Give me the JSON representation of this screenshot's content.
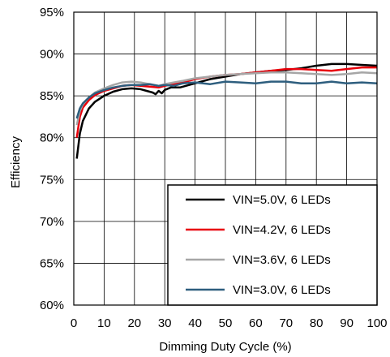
{
  "chart_data": {
    "type": "line",
    "title": "",
    "xlabel": "Dimming Duty Cycle (%)",
    "ylabel": "Efficiency",
    "xlim": [
      0,
      100
    ],
    "ylim": [
      60,
      95
    ],
    "xticks": [
      0,
      10,
      20,
      30,
      40,
      50,
      60,
      70,
      80,
      90,
      100
    ],
    "yticks": [
      60,
      65,
      70,
      75,
      80,
      85,
      90,
      95
    ],
    "ytick_labels": [
      "60%",
      "65%",
      "70%",
      "75%",
      "80%",
      "85%",
      "90%",
      "95%"
    ],
    "xtick_labels": [
      "0",
      "10",
      "20",
      "30",
      "40",
      "50",
      "60",
      "70",
      "80",
      "90",
      "100"
    ],
    "grid": true,
    "legend_position": "bottom-right",
    "series": [
      {
        "name": "VIN=5.0V, 6 LEDs",
        "color": "#000000",
        "x": [
          1,
          2,
          3,
          5,
          7,
          10,
          13,
          16,
          19,
          22,
          24,
          26,
          27,
          28,
          29,
          30,
          32,
          35,
          40,
          45,
          50,
          55,
          60,
          65,
          70,
          75,
          80,
          85,
          90,
          95,
          100
        ],
        "y": [
          77.5,
          80.5,
          82.0,
          83.5,
          84.3,
          85.0,
          85.5,
          85.8,
          85.9,
          85.8,
          85.6,
          85.4,
          85.2,
          85.6,
          85.3,
          85.7,
          86.0,
          86.0,
          86.5,
          87.0,
          87.3,
          87.6,
          87.8,
          88.0,
          88.1,
          88.3,
          88.6,
          88.8,
          88.8,
          88.7,
          88.6
        ]
      },
      {
        "name": "VIN=4.2V, 6 LEDs",
        "color": "#e8000b",
        "x": [
          1,
          2,
          3,
          5,
          7,
          10,
          13,
          16,
          19,
          22,
          25,
          28,
          30,
          33,
          36,
          40,
          45,
          50,
          55,
          60,
          65,
          70,
          75,
          80,
          85,
          90,
          95,
          100
        ],
        "y": [
          80.0,
          82.5,
          83.6,
          84.5,
          85.1,
          85.6,
          85.9,
          86.2,
          86.3,
          86.2,
          86.1,
          86.0,
          86.2,
          86.4,
          86.6,
          87.0,
          87.3,
          87.5,
          87.6,
          87.8,
          88.0,
          88.2,
          88.2,
          88.1,
          88.0,
          88.2,
          88.4,
          88.4
        ]
      },
      {
        "name": "VIN=3.6V, 6 LEDs",
        "color": "#a6a6a6",
        "x": [
          1,
          2,
          3,
          5,
          7,
          10,
          13,
          16,
          19,
          22,
          25,
          28,
          30,
          33,
          36,
          40,
          45,
          50,
          55,
          60,
          65,
          70,
          75,
          80,
          85,
          90,
          95,
          100
        ],
        "y": [
          81.5,
          83.2,
          84.0,
          84.8,
          85.4,
          85.9,
          86.3,
          86.6,
          86.7,
          86.6,
          86.4,
          86.2,
          86.4,
          86.6,
          86.8,
          87.1,
          87.3,
          87.5,
          87.6,
          87.7,
          87.8,
          87.8,
          87.7,
          87.6,
          87.5,
          87.6,
          87.8,
          87.7
        ]
      },
      {
        "name": "VIN=3.0V, 6 LEDs",
        "color": "#2e5e7e",
        "x": [
          1,
          2,
          3,
          5,
          7,
          10,
          13,
          16,
          19,
          22,
          25,
          28,
          30,
          33,
          36,
          40,
          45,
          50,
          55,
          60,
          65,
          70,
          75,
          80,
          85,
          90,
          95,
          100
        ],
        "y": [
          82.3,
          83.5,
          84.1,
          84.8,
          85.3,
          85.7,
          86.0,
          86.2,
          86.3,
          86.3,
          86.4,
          86.2,
          86.3,
          86.2,
          86.5,
          86.6,
          86.4,
          86.7,
          86.6,
          86.5,
          86.7,
          86.7,
          86.5,
          86.5,
          86.7,
          86.5,
          86.6,
          86.5
        ]
      }
    ]
  }
}
